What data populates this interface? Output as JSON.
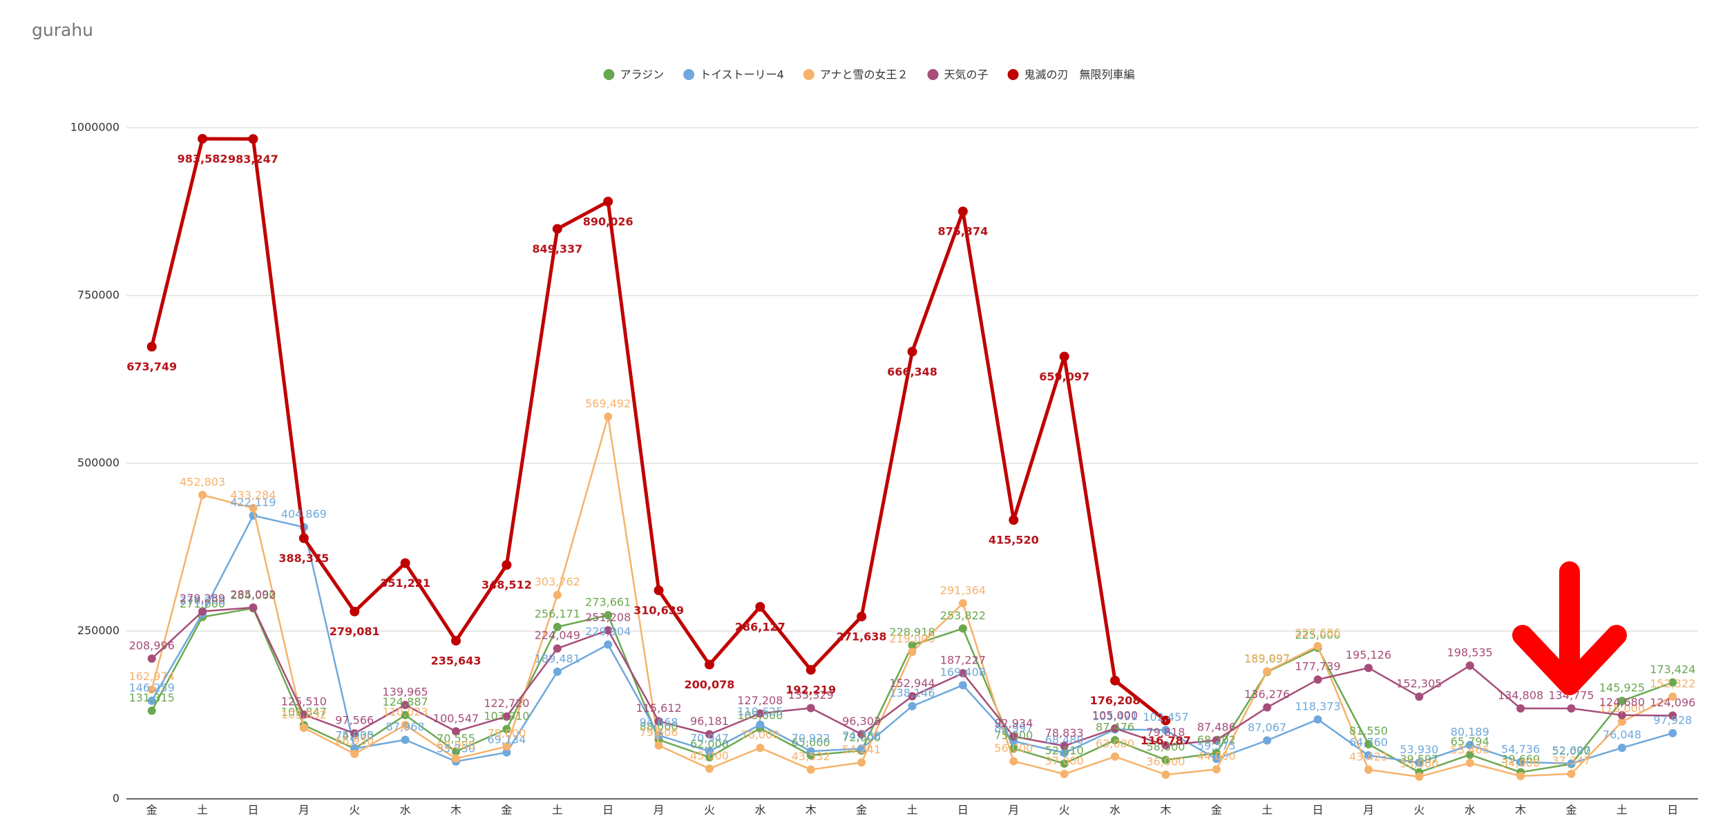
{
  "chart_data": {
    "type": "line",
    "title": "gurahu",
    "categories": [
      "金",
      "土",
      "日",
      "月",
      "火",
      "水",
      "木",
      "金",
      "土",
      "日",
      "月",
      "火",
      "水",
      "木",
      "金",
      "土",
      "日",
      "月",
      "火",
      "水",
      "木",
      "金",
      "土",
      "日",
      "月",
      "火",
      "水",
      "木",
      "金",
      "土",
      "日"
    ],
    "ylim": [
      0,
      1000000
    ],
    "yticks": [
      0,
      250000,
      500000,
      750000,
      1000000
    ],
    "grid": true,
    "legend": "top",
    "series": [
      {
        "name": "アラジン",
        "color": "#6aa84f",
        "values": [
          131315,
          271000,
          284000,
          109847,
          74935,
          124887,
          70555,
          103910,
          256171,
          273661,
          88000,
          62000,
          105000,
          65000,
          72000,
          228918,
          253822,
          75000,
          52610,
          87476,
          58000,
          68202,
          189097,
          225000,
          81550,
          39597,
          65794,
          39660,
          52000,
          145925,
          173424
        ],
        "value_labels": [
          "131,315",
          "271,000",
          "284,000",
          "109,847",
          "74,935",
          "124,887",
          "70,555",
          "103,910",
          "256,171",
          "273,661",
          "88,000",
          "62,000",
          "105,000",
          "65,000",
          "72,000",
          "228,918",
          "253,822",
          "75,000",
          "52,610",
          "87,476",
          "58,000",
          "68,202",
          "189,097",
          "225,000",
          "81,550",
          "39,597",
          "65,794",
          "39,660",
          "52,000",
          "145,925",
          "173,424"
        ]
      },
      {
        "name": "トイストーリー4",
        "color": "#6fa8dc",
        "values": [
          146259,
          276000,
          422119,
          404869,
          75000,
          87968,
          55730,
          69134,
          189481,
          229904,
          94668,
          70947,
          110625,
          70922,
          74786,
          138146,
          169408,
          85997,
          68480,
          103491,
          102457,
          59575,
          87067,
          118373,
          64760,
          53930,
          80189,
          54736,
          52697,
          76048,
          97928
        ],
        "value_labels": [
          "146,259",
          "276,000",
          "422,119",
          "404,869",
          "75,000",
          "87,968",
          "55,730",
          "69,134",
          "189,481",
          "229,904",
          "94,668",
          "70,947",
          "110,625",
          "70,922",
          "74,786",
          "138,146",
          "169,408",
          "85,997",
          "68,480",
          "103,491",
          "102,457",
          "59,575",
          "87,067",
          "118,373",
          "64,760",
          "53,930",
          "80,189",
          "54,736",
          "52,697",
          "76,048",
          "97,928"
        ]
      },
      {
        "name": "アナと雪の女王２",
        "color": "#f6b26b",
        "values": [
          162974,
          452803,
          433284,
          105832,
          66950,
          110023,
          60000,
          78000,
          303762,
          569492,
          79606,
          45000,
          76000,
          43532,
          54241,
          219000,
          291364,
          56000,
          37000,
          63000,
          36000,
          44000,
          189997,
          227686,
          43423,
          33000,
          53466,
          34000,
          37347,
          115000,
          152322
        ],
        "value_labels": [
          "162,974",
          "452,803",
          "433,284",
          "105,832",
          "66,950",
          "110,023",
          "60,000",
          "78,000",
          "303,762",
          "569,492",
          "79,606",
          "45,000",
          "76,000",
          "43,532",
          "54,241",
          "219,000",
          "291,364",
          "56,000",
          "37,000",
          "63,000",
          "36,000",
          "44,000",
          "189,997",
          "227,686",
          "43,423",
          "33,000",
          "53,466",
          "34,000",
          "37,347",
          "115,000",
          "152,322"
        ]
      },
      {
        "name": "天気の子",
        "color": "#a64d79",
        "values": [
          208996,
          279289,
          285092,
          125510,
          97566,
          139965,
          100547,
          122720,
          224049,
          251208,
          115612,
          96181,
          127208,
          135329,
          96303,
          152944,
          187227,
          92934,
          78833,
          105000,
          79818,
          87486,
          136276,
          177739,
          195126,
          152305,
          198535,
          134808,
          134775,
          124680,
          124096
        ],
        "value_labels": [
          "208,996",
          "279,289",
          "285,092",
          "125,510",
          "97,566",
          "139,965",
          "100,547",
          "122,720",
          "224,049",
          "251,208",
          "115,612",
          "96,181",
          "127,208",
          "135,329",
          "96,303",
          "152,944",
          "187,227",
          "92,934",
          "78,833",
          "105,000",
          "79,818",
          "87,486",
          "136,276",
          "177,739",
          "195,126",
          "152,305",
          "198,535",
          "134,808",
          "134,775",
          "124,680",
          "124,096"
        ]
      },
      {
        "name": "鬼滅の刃　無限列車編",
        "color": "#c00000",
        "values": [
          673749,
          983582,
          983247,
          388375,
          279081,
          351221,
          235643,
          348512,
          849337,
          890026,
          310639,
          200078,
          286127,
          192219,
          271638,
          666348,
          875374,
          415520,
          659097,
          176208,
          116787,
          null,
          null,
          null,
          null,
          null,
          null,
          null,
          null,
          null,
          null
        ],
        "value_labels": [
          "673,749",
          "983,582",
          "983,247",
          "388,375",
          "279,081",
          "351,221",
          "235,643",
          "348,512",
          "849,337",
          "890,026",
          "310,639",
          "200,078",
          "286,127",
          "192,219",
          "271,638",
          "666,348",
          "875,374",
          "415,520",
          "659,097",
          "176,208",
          "116,787",
          null,
          null,
          null,
          null,
          null,
          null,
          null,
          null,
          null,
          null
        ]
      }
    ]
  }
}
